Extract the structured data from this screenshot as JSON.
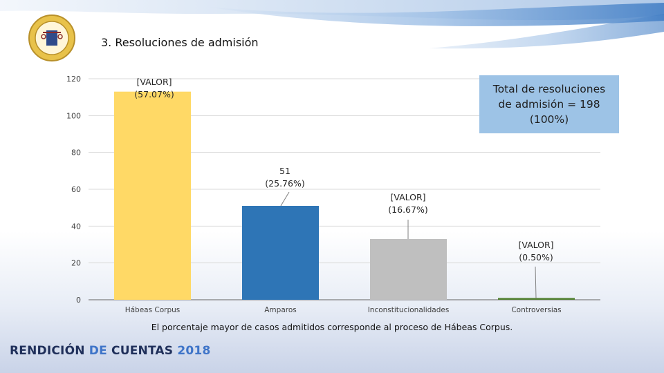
{
  "header": {
    "title": "3. Resoluciones de admisión",
    "logo_text": "ÓRGANO JUDICIAL · CORTE SUPREMA DE JUSTICIA"
  },
  "total_box": {
    "line1": "Total de resoluciones",
    "line2": "de admisión = 198",
    "line3": "(100%)"
  },
  "caption": "El porcentaje mayor de casos admitidos corresponde al proceso de Hábeas Corpus.",
  "footer": {
    "word1": "RENDICIÓN",
    "word2": "DE",
    "word3": "CUENTAS",
    "word4": "2018"
  },
  "colors": {
    "habeas": "#ffd966",
    "amparos": "#2e75b6",
    "incons": "#bfbfbf",
    "contro": "#548235",
    "box": "#9dc3e6"
  },
  "chart_data": {
    "type": "bar",
    "categories": [
      "Hábeas Corpus",
      "Amparos",
      "Inconstitucionalidades",
      "Controversias"
    ],
    "values": [
      113,
      51,
      33,
      1
    ],
    "ylim": [
      0,
      120
    ],
    "yticks": [
      "0",
      "20",
      "40",
      "60",
      "80",
      "100",
      "120"
    ],
    "grid": true,
    "data_labels": [
      [
        "[VALOR]",
        "(57.07%)"
      ],
      [
        "51",
        "(25.76%)"
      ],
      [
        "[VALOR]",
        "(16.67%)"
      ],
      [
        "[VALOR]",
        "(0.50%)"
      ]
    ]
  }
}
